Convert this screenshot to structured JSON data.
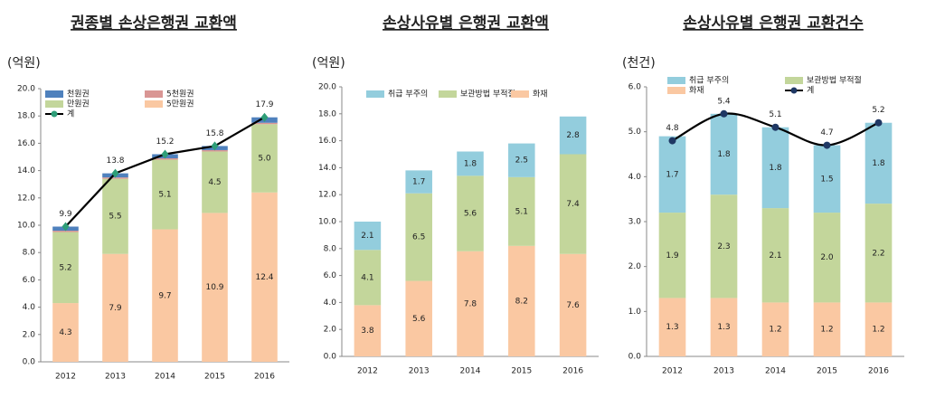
{
  "chart_data": [
    {
      "type": "bar",
      "stacked": true,
      "title": "권종별 손상은행권 교환액",
      "y_label": "(억원)",
      "categories": [
        "2012",
        "2013",
        "2014",
        "2015",
        "2016"
      ],
      "ylim": [
        0,
        20
      ],
      "yticks": [
        {
          "value": 0,
          "label": "0.0"
        },
        {
          "value": 2,
          "label": "2.0"
        },
        {
          "value": 4,
          "label": "4.0"
        },
        {
          "value": 6,
          "label": "6.0"
        },
        {
          "value": 8,
          "label": "8.0"
        },
        {
          "value": 10,
          "label": "10.0"
        },
        {
          "value": 12,
          "label": "12.0"
        },
        {
          "value": 14,
          "label": "14.0"
        },
        {
          "value": 16,
          "label": "16.0"
        },
        {
          "value": 18,
          "label": "18.0"
        },
        {
          "value": 20,
          "label": "20.0"
        }
      ],
      "series": [
        {
          "name": "5만원권",
          "color": "#fac8a2",
          "values": [
            4.3,
            7.9,
            9.7,
            10.9,
            12.4
          ],
          "value_labels": [
            "4.3",
            "7.9",
            "9.7",
            "10.9",
            "12.4"
          ]
        },
        {
          "name": "만원권",
          "color": "#c3d69b",
          "values": [
            5.2,
            5.5,
            5.1,
            4.5,
            5.0
          ],
          "value_labels": [
            "5.2",
            "5.5",
            "5.1",
            "4.5",
            "5.0"
          ]
        },
        {
          "name": "5천원권",
          "color": "#d99694",
          "values": [
            0.1,
            0.1,
            0.1,
            0.1,
            0.1
          ]
        },
        {
          "name": "천원권",
          "color": "#4f81bd",
          "values": [
            0.3,
            0.3,
            0.3,
            0.3,
            0.4
          ]
        },
        {
          "name": "계",
          "type": "line",
          "color": "#000000",
          "marker_color": "#2e9e78",
          "values": [
            9.9,
            13.8,
            15.2,
            15.8,
            17.9
          ],
          "value_labels": [
            "9.9",
            "13.8",
            "15.2",
            "15.8",
            "17.9"
          ]
        }
      ]
    },
    {
      "type": "bar",
      "stacked": true,
      "title": "손상사유별 은행권 교환액",
      "y_label": "(억원)",
      "categories": [
        "2012",
        "2013",
        "2014",
        "2015",
        "2016"
      ],
      "ylim": [
        0,
        20
      ],
      "yticks": [
        {
          "value": 0,
          "label": "0.0"
        },
        {
          "value": 2,
          "label": "2.0"
        },
        {
          "value": 4,
          "label": "4.0"
        },
        {
          "value": 6,
          "label": "6.0"
        },
        {
          "value": 8,
          "label": "8.0"
        },
        {
          "value": 10,
          "label": "10.0"
        },
        {
          "value": 12,
          "label": "12.0"
        },
        {
          "value": 14,
          "label": "14.0"
        },
        {
          "value": 16,
          "label": "16.0"
        },
        {
          "value": 18,
          "label": "18.0"
        },
        {
          "value": 20,
          "label": "20.0"
        }
      ],
      "series": [
        {
          "name": "화재",
          "color": "#fac8a2",
          "values": [
            3.8,
            5.6,
            7.8,
            8.2,
            7.6
          ],
          "value_labels": [
            "3.8",
            "5.6",
            "7.8",
            "8.2",
            "7.6"
          ]
        },
        {
          "name": "보관방법 부적절",
          "color": "#c3d69b",
          "values": [
            4.1,
            6.5,
            5.6,
            5.1,
            7.4
          ],
          "value_labels": [
            "4.1",
            "6.5",
            "5.6",
            "5.1",
            "7.4"
          ]
        },
        {
          "name": "취급 부주의",
          "color": "#93cddd",
          "values": [
            2.1,
            1.7,
            1.8,
            2.5,
            2.8
          ],
          "value_labels": [
            "2.1",
            "1.7",
            "1.8",
            "2.5",
            "2.8"
          ]
        }
      ]
    },
    {
      "type": "bar",
      "stacked": true,
      "title": "손상사유별 은행권 교환건수",
      "y_label": "(천건)",
      "categories": [
        "2012",
        "2013",
        "2014",
        "2015",
        "2016"
      ],
      "ylim": [
        0,
        6
      ],
      "yticks": [
        {
          "value": 0,
          "label": "0.0"
        },
        {
          "value": 1,
          "label": "1.0"
        },
        {
          "value": 2,
          "label": "2.0"
        },
        {
          "value": 3,
          "label": "3.0"
        },
        {
          "value": 4,
          "label": "4.0"
        },
        {
          "value": 5,
          "label": "5.0"
        },
        {
          "value": 6,
          "label": "6.0"
        }
      ],
      "series": [
        {
          "name": "화재",
          "color": "#fac8a2",
          "values": [
            1.3,
            1.3,
            1.2,
            1.2,
            1.2
          ],
          "value_labels": [
            "1.3",
            "1.3",
            "1.2",
            "1.2",
            "1.2"
          ]
        },
        {
          "name": "보관방법 부적절",
          "color": "#c3d69b",
          "values": [
            1.9,
            2.3,
            2.1,
            2.0,
            2.2
          ],
          "value_labels": [
            "1.9",
            "2.3",
            "2.1",
            "2.0",
            "2.2"
          ]
        },
        {
          "name": "취급 부주의",
          "color": "#93cddd",
          "values": [
            1.7,
            1.8,
            1.8,
            1.5,
            1.8
          ],
          "value_labels": [
            "1.7",
            "1.8",
            "1.8",
            "1.5",
            "1.8"
          ]
        },
        {
          "name": "계",
          "type": "line",
          "smooth": true,
          "color": "#000000",
          "marker_color": "#1f3864",
          "values": [
            4.8,
            5.4,
            5.1,
            4.7,
            5.2
          ],
          "value_labels": [
            "4.8",
            "5.4",
            "5.1",
            "4.7",
            "5.2"
          ]
        }
      ]
    }
  ]
}
